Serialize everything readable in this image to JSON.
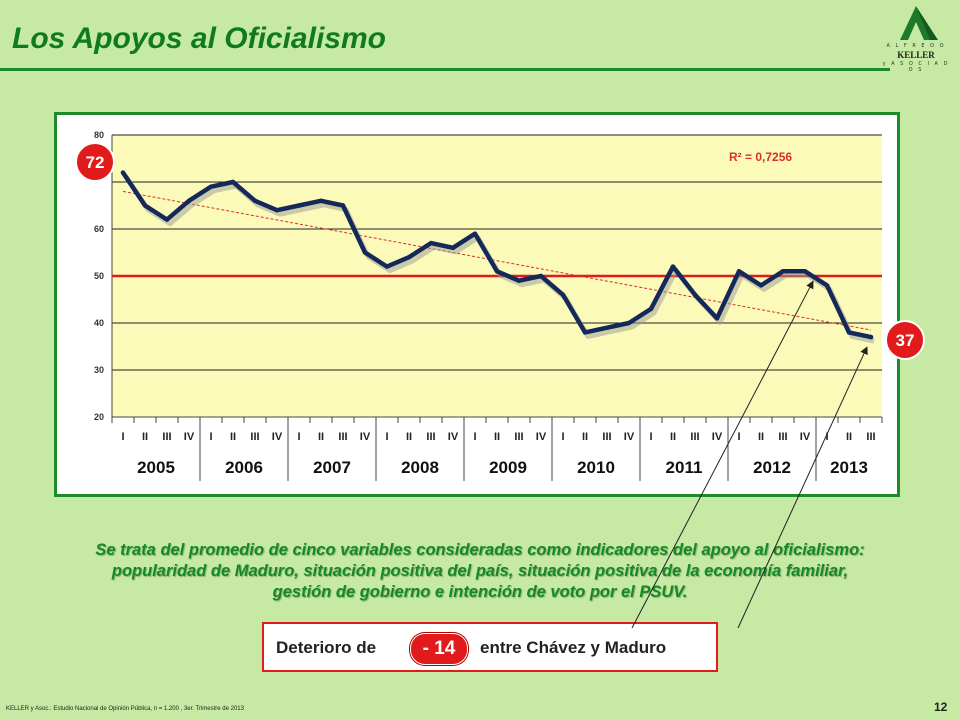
{
  "header": {
    "title": "Los Apoyos al Oficialismo"
  },
  "logo": {
    "top_text": "A L F R E D O",
    "brand": "KELLER",
    "bottom_text": "y  A S O C I A D O S",
    "color": "#1e7a2a"
  },
  "chart_data": {
    "type": "line",
    "title": "",
    "xlabel": "",
    "ylabel": "",
    "ylim": [
      20,
      80
    ],
    "yticks": [
      20,
      30,
      40,
      50,
      60,
      80
    ],
    "grid": true,
    "years": [
      "2005",
      "2006",
      "2007",
      "2008",
      "2009",
      "2010",
      "2011",
      "2012",
      "2013"
    ],
    "quarters": [
      "I",
      "II",
      "III",
      "IV",
      "I",
      "II",
      "III",
      "IV",
      "I",
      "II",
      "III",
      "IV",
      "I",
      "II",
      "III",
      "IV",
      "I",
      "II",
      "III",
      "IV",
      "I",
      "II",
      "III",
      "IV",
      "I",
      "II",
      "III",
      "IV",
      "I",
      "II",
      "III",
      "IV",
      "I",
      "II",
      "III"
    ],
    "series": [
      {
        "values": [
          72,
          65,
          62,
          66,
          69,
          70,
          66,
          64,
          65,
          66,
          65,
          55,
          52,
          54,
          57,
          56,
          59,
          51,
          49,
          50,
          46,
          38,
          39,
          40,
          43,
          52,
          46,
          41,
          51,
          48,
          51,
          51,
          48,
          38,
          37
        ],
        "color": "#14285a"
      }
    ],
    "trendline": {
      "start": 68,
      "end": 38.5,
      "color": "#d63030"
    },
    "reference_line": {
      "value": 50,
      "color": "#e11b1b"
    },
    "r_squared_label": "R² = 0,7256",
    "badges": {
      "start_label": "72",
      "end_label": "37",
      "color": "#e11b1b"
    }
  },
  "caption": {
    "line1": "Se trata del promedio de cinco variables consideradas como indicadores del apoyo al oficialismo:",
    "line2": "popularidad de Maduro, situación positiva del país, situación positiva de la economía familiar,",
    "line3": "gestión de gobierno e intención de voto por el PSUV."
  },
  "deterioro": {
    "prefix": "Deterioro de",
    "value": "- 14",
    "suffix": "entre Chávez y Maduro"
  },
  "footer": {
    "source": "KELLER y Asoc.: Estudio Nacional de Opinión Pública, n = 1.200 , 3er. Trimestre de 2013",
    "page": "12"
  }
}
